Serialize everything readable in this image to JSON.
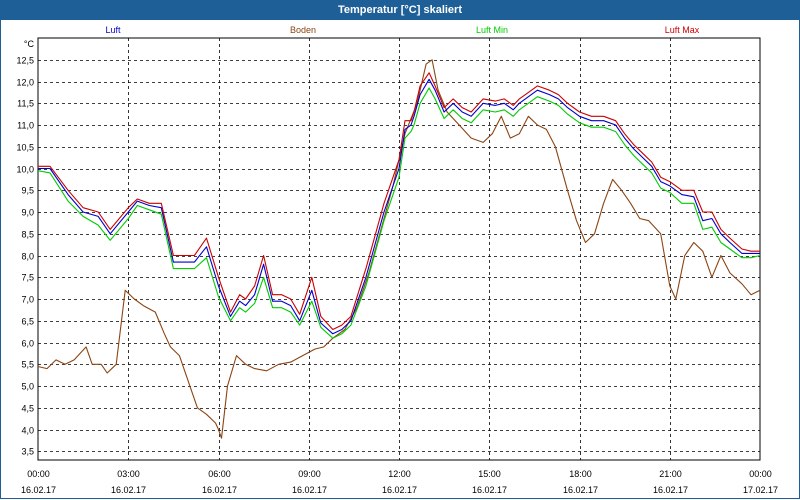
{
  "window": {
    "title": "Temperatur [°C] skaliert"
  },
  "chart_data": {
    "type": "line",
    "title": "Temperatur [°C] skaliert",
    "ylabel": "°C",
    "xlabel": "",
    "ylim": [
      3.3,
      13.0
    ],
    "xlim": [
      0,
      24
    ],
    "grid": true,
    "legend_position": "top",
    "y_ticks": [
      "3,5",
      "4,0",
      "4,5",
      "5,0",
      "5,5",
      "6,0",
      "6,5",
      "7,0",
      "7,5",
      "8,0",
      "8,5",
      "9,0",
      "9,5",
      "10,0",
      "10,5",
      "11,0",
      "11,5",
      "12,0",
      "12,5"
    ],
    "x_ticks": [
      {
        "time": "00:00",
        "date": "16.02.17"
      },
      {
        "time": "03:00",
        "date": "16.02.17"
      },
      {
        "time": "06:00",
        "date": "16.02.17"
      },
      {
        "time": "09:00",
        "date": "16.02.17"
      },
      {
        "time": "12:00",
        "date": "16.02.17"
      },
      {
        "time": "15:00",
        "date": "16.02.17"
      },
      {
        "time": "18:00",
        "date": "16.02.17"
      },
      {
        "time": "21:00",
        "date": "16.02.17"
      },
      {
        "time": "00:00",
        "date": "17.02.17"
      }
    ],
    "series": [
      {
        "name": "Luft",
        "color": "#0000cc",
        "points": [
          [
            0,
            10.0
          ],
          [
            0.4,
            10.0
          ],
          [
            1.0,
            9.4
          ],
          [
            1.5,
            9.0
          ],
          [
            2.0,
            8.9
          ],
          [
            2.4,
            8.5
          ],
          [
            3.0,
            9.0
          ],
          [
            3.3,
            9.25
          ],
          [
            3.7,
            9.15
          ],
          [
            4.1,
            9.1
          ],
          [
            4.5,
            7.85
          ],
          [
            4.9,
            7.85
          ],
          [
            5.2,
            7.85
          ],
          [
            5.6,
            8.2
          ],
          [
            6.0,
            7.3
          ],
          [
            6.4,
            6.6
          ],
          [
            6.7,
            6.95
          ],
          [
            6.9,
            6.85
          ],
          [
            7.2,
            7.1
          ],
          [
            7.5,
            7.8
          ],
          [
            7.8,
            6.95
          ],
          [
            8.1,
            6.95
          ],
          [
            8.4,
            6.85
          ],
          [
            8.7,
            6.5
          ],
          [
            9.1,
            7.2
          ],
          [
            9.4,
            6.45
          ],
          [
            9.8,
            6.2
          ],
          [
            10.1,
            6.3
          ],
          [
            10.4,
            6.5
          ],
          [
            10.9,
            7.5
          ],
          [
            11.5,
            9.0
          ],
          [
            12.0,
            10.0
          ],
          [
            12.2,
            10.9
          ],
          [
            12.4,
            11.0
          ],
          [
            12.5,
            11.2
          ],
          [
            12.7,
            11.7
          ],
          [
            13.0,
            12.05
          ],
          [
            13.2,
            11.8
          ],
          [
            13.5,
            11.3
          ],
          [
            13.8,
            11.5
          ],
          [
            14.1,
            11.3
          ],
          [
            14.4,
            11.2
          ],
          [
            14.8,
            11.5
          ],
          [
            15.2,
            11.45
          ],
          [
            15.5,
            11.5
          ],
          [
            15.8,
            11.35
          ],
          [
            16.0,
            11.5
          ],
          [
            16.3,
            11.65
          ],
          [
            16.6,
            11.8
          ],
          [
            17.0,
            11.7
          ],
          [
            17.3,
            11.6
          ],
          [
            17.6,
            11.4
          ],
          [
            18.0,
            11.2
          ],
          [
            18.4,
            11.1
          ],
          [
            18.8,
            11.1
          ],
          [
            19.2,
            11.0
          ],
          [
            19.5,
            10.7
          ],
          [
            19.8,
            10.45
          ],
          [
            20.1,
            10.25
          ],
          [
            20.4,
            10.05
          ],
          [
            20.7,
            9.7
          ],
          [
            21.0,
            9.6
          ],
          [
            21.4,
            9.4
          ],
          [
            21.8,
            9.35
          ],
          [
            22.1,
            8.8
          ],
          [
            22.4,
            8.85
          ],
          [
            22.7,
            8.5
          ],
          [
            23.0,
            8.3
          ],
          [
            23.4,
            8.05
          ],
          [
            23.7,
            8.05
          ],
          [
            24.0,
            8.05
          ]
        ]
      },
      {
        "name": "Boden",
        "color": "#8b4513",
        "points": [
          [
            0,
            5.45
          ],
          [
            0.3,
            5.4
          ],
          [
            0.6,
            5.6
          ],
          [
            0.9,
            5.5
          ],
          [
            1.2,
            5.6
          ],
          [
            1.6,
            5.9
          ],
          [
            1.8,
            5.5
          ],
          [
            2.1,
            5.5
          ],
          [
            2.3,
            5.3
          ],
          [
            2.6,
            5.5
          ],
          [
            2.9,
            7.2
          ],
          [
            3.2,
            7.0
          ],
          [
            3.5,
            6.85
          ],
          [
            3.9,
            6.7
          ],
          [
            4.2,
            6.2
          ],
          [
            4.4,
            5.9
          ],
          [
            4.7,
            5.7
          ],
          [
            5.0,
            5.1
          ],
          [
            5.3,
            4.5
          ],
          [
            5.6,
            4.35
          ],
          [
            5.9,
            4.15
          ],
          [
            6.0,
            4.0
          ],
          [
            6.1,
            3.8
          ],
          [
            6.3,
            5.0
          ],
          [
            6.6,
            5.7
          ],
          [
            6.9,
            5.5
          ],
          [
            7.2,
            5.4
          ],
          [
            7.6,
            5.35
          ],
          [
            8.0,
            5.5
          ],
          [
            8.4,
            5.55
          ],
          [
            8.8,
            5.7
          ],
          [
            9.2,
            5.85
          ],
          [
            9.5,
            5.9
          ],
          [
            9.8,
            6.1
          ],
          [
            10.2,
            6.3
          ],
          [
            10.6,
            6.8
          ],
          [
            11.0,
            7.6
          ],
          [
            11.4,
            8.6
          ],
          [
            11.8,
            9.6
          ],
          [
            12.2,
            10.8
          ],
          [
            12.6,
            11.5
          ],
          [
            12.9,
            12.4
          ],
          [
            13.1,
            12.5
          ],
          [
            13.3,
            11.8
          ],
          [
            13.6,
            11.3
          ],
          [
            14.0,
            11.0
          ],
          [
            14.4,
            10.7
          ],
          [
            14.8,
            10.6
          ],
          [
            15.1,
            10.8
          ],
          [
            15.4,
            11.2
          ],
          [
            15.7,
            10.7
          ],
          [
            16.0,
            10.8
          ],
          [
            16.3,
            11.2
          ],
          [
            16.6,
            11.0
          ],
          [
            16.9,
            10.9
          ],
          [
            17.2,
            10.5
          ],
          [
            17.6,
            9.5
          ],
          [
            17.9,
            8.8
          ],
          [
            18.2,
            8.3
          ],
          [
            18.5,
            8.5
          ],
          [
            18.8,
            9.2
          ],
          [
            19.1,
            9.75
          ],
          [
            19.4,
            9.5
          ],
          [
            19.7,
            9.2
          ],
          [
            20.0,
            8.85
          ],
          [
            20.3,
            8.8
          ],
          [
            20.7,
            8.5
          ],
          [
            21.0,
            7.3
          ],
          [
            21.2,
            7.0
          ],
          [
            21.5,
            8.0
          ],
          [
            21.8,
            8.3
          ],
          [
            22.1,
            8.1
          ],
          [
            22.4,
            7.5
          ],
          [
            22.7,
            8.0
          ],
          [
            23.0,
            7.6
          ],
          [
            23.4,
            7.35
          ],
          [
            23.7,
            7.1
          ],
          [
            24.0,
            7.2
          ]
        ]
      },
      {
        "name": "Luft Min",
        "color": "#00cc00",
        "points": [
          [
            0,
            9.95
          ],
          [
            0.4,
            9.9
          ],
          [
            1.0,
            9.25
          ],
          [
            1.5,
            8.9
          ],
          [
            2.0,
            8.7
          ],
          [
            2.4,
            8.35
          ],
          [
            3.0,
            8.85
          ],
          [
            3.3,
            9.15
          ],
          [
            3.7,
            9.05
          ],
          [
            4.1,
            8.95
          ],
          [
            4.5,
            7.7
          ],
          [
            4.9,
            7.7
          ],
          [
            5.2,
            7.7
          ],
          [
            5.6,
            7.95
          ],
          [
            6.0,
            7.05
          ],
          [
            6.4,
            6.5
          ],
          [
            6.7,
            6.8
          ],
          [
            6.9,
            6.7
          ],
          [
            7.2,
            6.9
          ],
          [
            7.5,
            7.5
          ],
          [
            7.8,
            6.8
          ],
          [
            8.1,
            6.8
          ],
          [
            8.4,
            6.7
          ],
          [
            8.7,
            6.4
          ],
          [
            9.1,
            6.95
          ],
          [
            9.4,
            6.35
          ],
          [
            9.8,
            6.1
          ],
          [
            10.1,
            6.2
          ],
          [
            10.4,
            6.4
          ],
          [
            10.9,
            7.3
          ],
          [
            11.5,
            8.8
          ],
          [
            12.0,
            9.8
          ],
          [
            12.2,
            10.7
          ],
          [
            12.4,
            10.85
          ],
          [
            12.5,
            11.0
          ],
          [
            12.7,
            11.5
          ],
          [
            13.0,
            11.85
          ],
          [
            13.2,
            11.6
          ],
          [
            13.5,
            11.15
          ],
          [
            13.8,
            11.35
          ],
          [
            14.1,
            11.15
          ],
          [
            14.4,
            11.05
          ],
          [
            14.8,
            11.35
          ],
          [
            15.2,
            11.3
          ],
          [
            15.5,
            11.35
          ],
          [
            15.8,
            11.2
          ],
          [
            16.0,
            11.35
          ],
          [
            16.3,
            11.5
          ],
          [
            16.6,
            11.65
          ],
          [
            17.0,
            11.55
          ],
          [
            17.3,
            11.45
          ],
          [
            17.6,
            11.25
          ],
          [
            18.0,
            11.05
          ],
          [
            18.4,
            10.95
          ],
          [
            18.8,
            10.95
          ],
          [
            19.2,
            10.85
          ],
          [
            19.5,
            10.55
          ],
          [
            19.8,
            10.3
          ],
          [
            20.1,
            10.1
          ],
          [
            20.4,
            9.9
          ],
          [
            20.7,
            9.55
          ],
          [
            21.0,
            9.45
          ],
          [
            21.4,
            9.2
          ],
          [
            21.8,
            9.2
          ],
          [
            22.1,
            8.6
          ],
          [
            22.4,
            8.65
          ],
          [
            22.7,
            8.3
          ],
          [
            23.0,
            8.15
          ],
          [
            23.4,
            7.95
          ],
          [
            23.7,
            7.95
          ],
          [
            24.0,
            8.0
          ]
        ]
      },
      {
        "name": "Luft Max",
        "color": "#cc0000",
        "points": [
          [
            0,
            10.05
          ],
          [
            0.4,
            10.05
          ],
          [
            1.0,
            9.5
          ],
          [
            1.5,
            9.1
          ],
          [
            2.0,
            9.0
          ],
          [
            2.4,
            8.6
          ],
          [
            3.0,
            9.1
          ],
          [
            3.3,
            9.3
          ],
          [
            3.7,
            9.2
          ],
          [
            4.1,
            9.2
          ],
          [
            4.5,
            8.0
          ],
          [
            4.9,
            8.0
          ],
          [
            5.2,
            8.0
          ],
          [
            5.6,
            8.4
          ],
          [
            6.0,
            7.5
          ],
          [
            6.4,
            6.7
          ],
          [
            6.7,
            7.1
          ],
          [
            6.9,
            7.0
          ],
          [
            7.2,
            7.3
          ],
          [
            7.5,
            8.0
          ],
          [
            7.8,
            7.1
          ],
          [
            8.1,
            7.1
          ],
          [
            8.4,
            7.0
          ],
          [
            8.7,
            6.65
          ],
          [
            9.1,
            7.5
          ],
          [
            9.4,
            6.6
          ],
          [
            9.8,
            6.3
          ],
          [
            10.1,
            6.4
          ],
          [
            10.4,
            6.6
          ],
          [
            10.9,
            7.7
          ],
          [
            11.5,
            9.2
          ],
          [
            12.0,
            10.2
          ],
          [
            12.2,
            11.1
          ],
          [
            12.4,
            11.1
          ],
          [
            12.5,
            11.3
          ],
          [
            12.7,
            11.9
          ],
          [
            13.0,
            12.2
          ],
          [
            13.2,
            11.9
          ],
          [
            13.5,
            11.4
          ],
          [
            13.8,
            11.6
          ],
          [
            14.1,
            11.4
          ],
          [
            14.4,
            11.3
          ],
          [
            14.8,
            11.6
          ],
          [
            15.2,
            11.55
          ],
          [
            15.5,
            11.6
          ],
          [
            15.8,
            11.45
          ],
          [
            16.0,
            11.6
          ],
          [
            16.3,
            11.75
          ],
          [
            16.6,
            11.9
          ],
          [
            17.0,
            11.8
          ],
          [
            17.3,
            11.7
          ],
          [
            17.6,
            11.5
          ],
          [
            18.0,
            11.3
          ],
          [
            18.4,
            11.2
          ],
          [
            18.8,
            11.2
          ],
          [
            19.2,
            11.1
          ],
          [
            19.5,
            10.8
          ],
          [
            19.8,
            10.55
          ],
          [
            20.1,
            10.35
          ],
          [
            20.4,
            10.15
          ],
          [
            20.7,
            9.8
          ],
          [
            21.0,
            9.7
          ],
          [
            21.4,
            9.5
          ],
          [
            21.8,
            9.5
          ],
          [
            22.1,
            9.0
          ],
          [
            22.4,
            9.0
          ],
          [
            22.7,
            8.6
          ],
          [
            23.0,
            8.4
          ],
          [
            23.4,
            8.15
          ],
          [
            23.7,
            8.1
          ],
          [
            24.0,
            8.1
          ]
        ]
      }
    ]
  }
}
